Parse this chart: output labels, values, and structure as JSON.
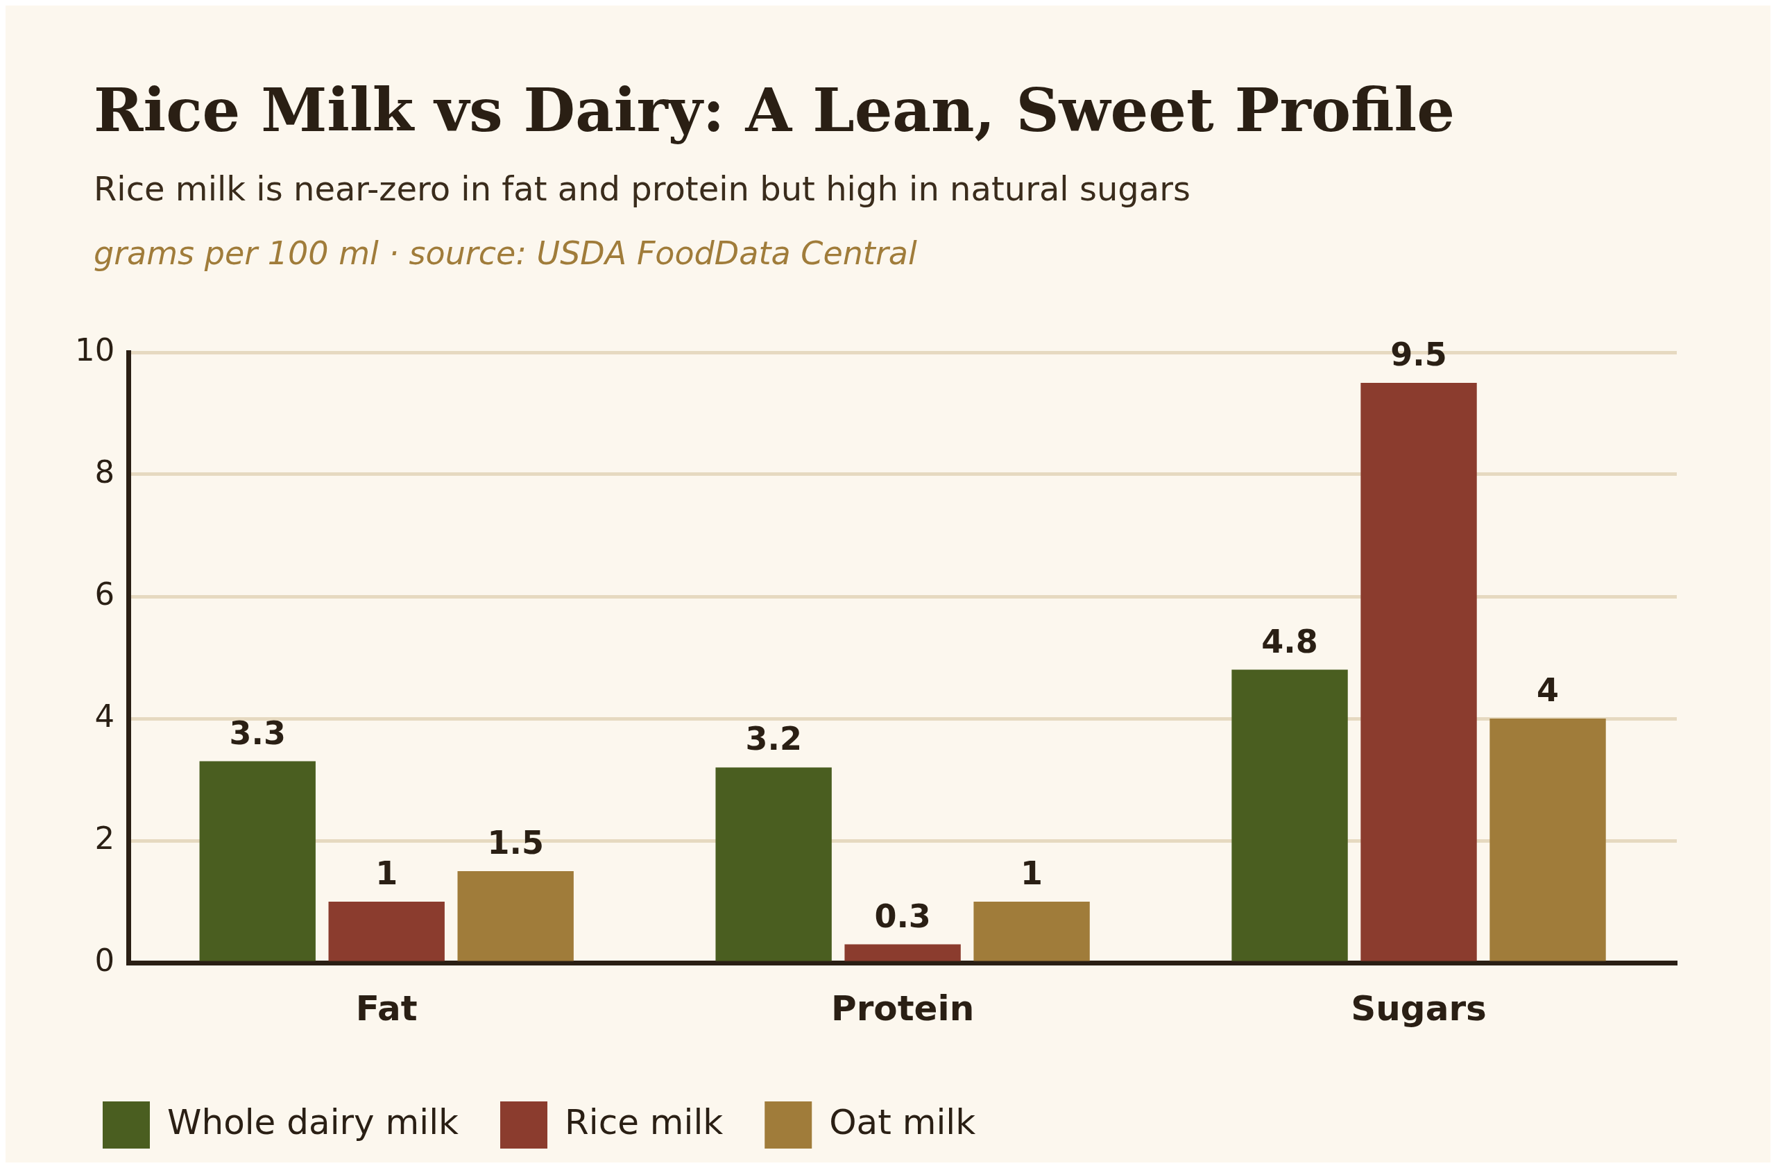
{
  "chart_data": {
    "type": "bar",
    "title": "Rice Milk vs Dairy: A Lean, Sweet Profile",
    "subtitle": "Rice milk is near-zero in fat and protein but high in natural sugars",
    "annotations": [
      "grams per 100 ml · source: USDA FoodData Central"
    ],
    "categories": [
      "Fat",
      "Protein",
      "Sugars"
    ],
    "series": [
      {
        "name": "Whole dairy milk",
        "color": "#4a5e20",
        "values": [
          3.3,
          3.2,
          4.8
        ]
      },
      {
        "name": "Rice milk",
        "color": "#8b3c2e",
        "values": [
          1,
          0.3,
          9.5
        ]
      },
      {
        "name": "Oat milk",
        "color": "#a07c3a",
        "values": [
          1.5,
          1,
          4
        ]
      }
    ],
    "ylim": [
      0,
      10
    ],
    "yticks": [
      0,
      2,
      4,
      6,
      8,
      10
    ],
    "grid": "y",
    "legend": "bottom",
    "data_labels": true
  }
}
